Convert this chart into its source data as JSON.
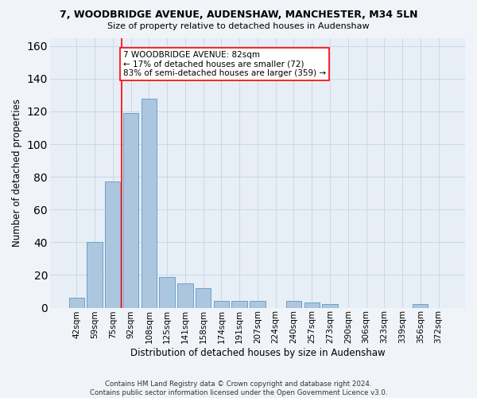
{
  "title1": "7, WOODBRIDGE AVENUE, AUDENSHAW, MANCHESTER, M34 5LN",
  "title2": "Size of property relative to detached houses in Audenshaw",
  "xlabel": "Distribution of detached houses by size in Audenshaw",
  "ylabel": "Number of detached properties",
  "bar_color": "#adc6e0",
  "bar_edge_color": "#6ba3c8",
  "background_color": "#e8eef5",
  "fig_background": "#f0f4f8",
  "categories": [
    "42sqm",
    "59sqm",
    "75sqm",
    "92sqm",
    "108sqm",
    "125sqm",
    "141sqm",
    "158sqm",
    "174sqm",
    "191sqm",
    "207sqm",
    "224sqm",
    "240sqm",
    "257sqm",
    "273sqm",
    "290sqm",
    "306sqm",
    "323sqm",
    "339sqm",
    "356sqm",
    "372sqm"
  ],
  "values": [
    6,
    40,
    77,
    119,
    128,
    19,
    15,
    12,
    4,
    4,
    4,
    0,
    4,
    3,
    2,
    0,
    0,
    0,
    0,
    2,
    0
  ],
  "ylim": [
    0,
    165
  ],
  "yticks": [
    0,
    20,
    40,
    60,
    80,
    100,
    120,
    140,
    160
  ],
  "annotation_text": "7 WOODBRIDGE AVENUE: 82sqm\n← 17% of detached houses are smaller (72)\n83% of semi-detached houses are larger (359) →",
  "vline_x_idx": 2.5,
  "footer_text": "Contains HM Land Registry data © Crown copyright and database right 2024.\nContains public sector information licensed under the Open Government Licence v3.0.",
  "grid_color": "#c8d8e8"
}
